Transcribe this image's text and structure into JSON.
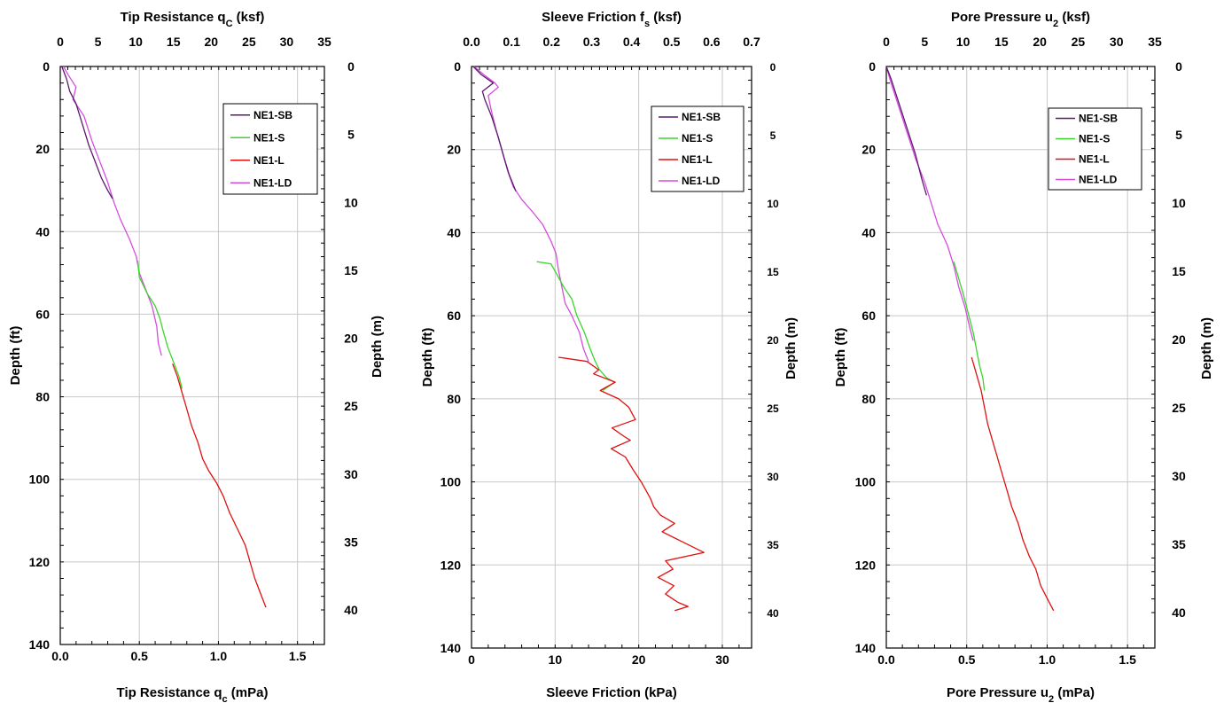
{
  "colors": {
    "NE1-SB": "#5b1a6e",
    "NE1-S": "#39d62b",
    "NE1-L": "#e01010",
    "NE1-LD": "#d54ce0",
    "grid": "#c8c8c8",
    "axis": "#000000"
  },
  "chart_data": [
    {
      "type": "line",
      "id": "tip",
      "title_top_pre": "Tip Resistance q",
      "title_top_sub": "C",
      "title_top_post": " (ksf)",
      "title_bottom_pre": "Tip Resistance q",
      "title_bottom_sub": "c",
      "title_bottom_post": " (mPa)",
      "ylabel_left": "Depth (ft)",
      "ylabel_right": "Depth (m)",
      "x_bottom": {
        "range": [
          0,
          1.67
        ],
        "ticks": [
          "0.0",
          "0.5",
          "1.0",
          "1.5"
        ],
        "tick_values": [
          0,
          0.5,
          1.0,
          1.5
        ]
      },
      "x_top": {
        "range": [
          0,
          35
        ],
        "ticks": [
          "0",
          "5",
          "10",
          "15",
          "20",
          "25",
          "30",
          "35"
        ],
        "tick_values": [
          0,
          5,
          10,
          15,
          20,
          25,
          30,
          35
        ]
      },
      "y_left": {
        "range": [
          0,
          140
        ],
        "ticks": [
          "0",
          "20",
          "40",
          "60",
          "80",
          "100",
          "120",
          "140"
        ],
        "tick_values": [
          0,
          20,
          40,
          60,
          80,
          100,
          120,
          140
        ]
      },
      "y_right": {
        "ticks": [
          "0",
          "5",
          "10",
          "15",
          "20",
          "25",
          "30",
          "35",
          "40"
        ],
        "tick_values": [
          0,
          5,
          10,
          15,
          20,
          25,
          30,
          35,
          40
        ]
      },
      "legend": {
        "position": "top-right",
        "entries": [
          "NE1-SB",
          "NE1-S",
          "NE1-L",
          "NE1-LD"
        ]
      },
      "series": [
        {
          "name": "NE1-LD",
          "points": [
            [
              0.02,
              0
            ],
            [
              0.05,
              2
            ],
            [
              0.1,
              5
            ],
            [
              0.08,
              8
            ],
            [
              0.15,
              12
            ],
            [
              0.2,
              18
            ],
            [
              0.26,
              24
            ],
            [
              0.3,
              28
            ],
            [
              0.34,
              33
            ],
            [
              0.38,
              37
            ],
            [
              0.44,
              42
            ],
            [
              0.48,
              46
            ],
            [
              0.5,
              50
            ],
            [
              0.54,
              54
            ],
            [
              0.58,
              58
            ],
            [
              0.61,
              63
            ],
            [
              0.62,
              67
            ],
            [
              0.64,
              70
            ]
          ]
        },
        {
          "name": "NE1-SB",
          "points": [
            [
              0.01,
              0
            ],
            [
              0.04,
              3
            ],
            [
              0.06,
              6
            ],
            [
              0.1,
              9
            ],
            [
              0.14,
              14
            ],
            [
              0.18,
              19
            ],
            [
              0.22,
              23
            ],
            [
              0.26,
              27
            ],
            [
              0.3,
              30
            ],
            [
              0.33,
              32
            ]
          ]
        },
        {
          "name": "NE1-S",
          "points": [
            [
              0.49,
              47
            ],
            [
              0.5,
              51
            ],
            [
              0.55,
              55
            ],
            [
              0.6,
              58
            ],
            [
              0.63,
              61
            ],
            [
              0.65,
              64
            ],
            [
              0.68,
              68
            ],
            [
              0.72,
              72
            ],
            [
              0.75,
              75
            ],
            [
              0.77,
              78
            ]
          ]
        },
        {
          "name": "NE1-L",
          "points": [
            [
              0.71,
              72
            ],
            [
              0.74,
              75
            ],
            [
              0.77,
              79
            ],
            [
              0.8,
              83
            ],
            [
              0.83,
              87
            ],
            [
              0.87,
              91
            ],
            [
              0.9,
              95
            ],
            [
              0.94,
              98
            ],
            [
              0.99,
              101
            ],
            [
              1.03,
              104
            ],
            [
              1.07,
              108
            ],
            [
              1.12,
              112
            ],
            [
              1.17,
              116
            ],
            [
              1.2,
              120
            ],
            [
              1.23,
              124
            ],
            [
              1.26,
              127
            ],
            [
              1.3,
              131
            ]
          ]
        }
      ]
    },
    {
      "type": "line",
      "id": "sleeve",
      "title_top_pre": "Sleeve Friction f",
      "title_top_sub": "s",
      "title_top_post": " (ksf)",
      "title_bottom_pre": "Sleeve Friction (kPa)",
      "title_bottom_sub": "",
      "title_bottom_post": "",
      "ylabel_left": "Depth (ft)",
      "ylabel_right": "Depth (m)",
      "x_bottom": {
        "range": [
          0,
          33.5
        ],
        "ticks": [
          "0",
          "10",
          "20",
          "30"
        ],
        "tick_values": [
          0,
          10,
          20,
          30
        ]
      },
      "x_top": {
        "range": [
          0,
          0.7
        ],
        "ticks": [
          "0.0",
          "0.1",
          "0.2",
          "0.3",
          "0.4",
          "0.5",
          "0.6",
          "0.7"
        ],
        "tick_values": [
          0,
          0.1,
          0.2,
          0.3,
          0.4,
          0.5,
          0.6,
          0.7
        ]
      },
      "y_left": {
        "range": [
          0,
          140
        ],
        "ticks": [
          "0",
          "20",
          "40",
          "60",
          "80",
          "100",
          "120",
          "140"
        ],
        "tick_values": [
          0,
          20,
          40,
          60,
          80,
          100,
          120,
          140
        ]
      },
      "y_right": {
        "ticks": [
          "0",
          "5",
          "10",
          "15",
          "20",
          "25",
          "30",
          "35",
          "40"
        ],
        "tick_values": [
          0,
          5,
          10,
          15,
          20,
          25,
          30,
          35,
          40
        ]
      },
      "legend": {
        "position": "top-right",
        "entries": [
          "NE1-SB",
          "NE1-S",
          "NE1-L",
          "NE1-LD"
        ]
      },
      "series": [
        {
          "name": "NE1-LD",
          "points": [
            [
              0.3,
              0
            ],
            [
              1.5,
              2
            ],
            [
              2.8,
              4
            ],
            [
              3.2,
              5
            ],
            [
              2,
              7
            ],
            [
              2.3,
              10
            ],
            [
              2.9,
              15
            ],
            [
              3.6,
              20
            ],
            [
              4.3,
              25
            ],
            [
              5,
              29
            ],
            [
              6,
              32
            ],
            [
              7.3,
              35
            ],
            [
              8.5,
              38
            ],
            [
              9.5,
              42
            ],
            [
              10.1,
              45
            ],
            [
              10.4,
              49
            ],
            [
              10.8,
              53
            ],
            [
              11.2,
              57
            ],
            [
              12,
              60
            ],
            [
              12.9,
              64
            ],
            [
              13.4,
              68
            ],
            [
              14,
              71
            ]
          ]
        },
        {
          "name": "NE1-SB",
          "points": [
            [
              0.2,
              0
            ],
            [
              1.2,
              2
            ],
            [
              2.6,
              4
            ],
            [
              1.3,
              6
            ],
            [
              1.6,
              8
            ],
            [
              2.4,
              12
            ],
            [
              3.2,
              17
            ],
            [
              3.9,
              22
            ],
            [
              4.5,
              26
            ],
            [
              5.3,
              30
            ]
          ]
        },
        {
          "name": "NE1-S",
          "points": [
            [
              7.8,
              47
            ],
            [
              9.5,
              47.5
            ],
            [
              10.2,
              50
            ],
            [
              11,
              53
            ],
            [
              12,
              56
            ],
            [
              12.6,
              60
            ],
            [
              13.5,
              64
            ],
            [
              14.2,
              68
            ],
            [
              14.8,
              71
            ],
            [
              15.3,
              73
            ],
            [
              16.2,
              75
            ],
            [
              17.1,
              76
            ],
            [
              15.7,
              78
            ]
          ]
        },
        {
          "name": "NE1-L",
          "points": [
            [
              10.4,
              70
            ],
            [
              13.8,
              71
            ],
            [
              15.2,
              73
            ],
            [
              14.6,
              74
            ],
            [
              17.2,
              76
            ],
            [
              15.4,
              78
            ],
            [
              17.6,
              80
            ],
            [
              18.8,
              82
            ],
            [
              19.6,
              85
            ],
            [
              16.8,
              87
            ],
            [
              18.2,
              89
            ],
            [
              19,
              90
            ],
            [
              16.7,
              92
            ],
            [
              18.4,
              94
            ],
            [
              19.3,
              97
            ],
            [
              20.3,
              100
            ],
            [
              21.4,
              104
            ],
            [
              21.8,
              106
            ],
            [
              22.6,
              108
            ],
            [
              24.3,
              110
            ],
            [
              22.8,
              112
            ],
            [
              24.8,
              114
            ],
            [
              27.8,
              117
            ],
            [
              23.2,
              119
            ],
            [
              24.1,
              121
            ],
            [
              22.3,
              123
            ],
            [
              24.2,
              125
            ],
            [
              23.2,
              127
            ],
            [
              24.7,
              129
            ],
            [
              25.9,
              130
            ],
            [
              24.3,
              131
            ]
          ]
        }
      ]
    },
    {
      "type": "line",
      "id": "pore",
      "title_top_pre": "Pore Pressure u",
      "title_top_sub": "2",
      "title_top_post": " (ksf)",
      "title_bottom_pre": "Pore Pressure u",
      "title_bottom_sub": "2",
      "title_bottom_post": " (mPa)",
      "ylabel_left": "Depth (ft)",
      "ylabel_right": "Depth (m)",
      "x_bottom": {
        "range": [
          0,
          1.67
        ],
        "ticks": [
          "0.0",
          "0.5",
          "1.0",
          "1.5"
        ],
        "tick_values": [
          0,
          0.5,
          1.0,
          1.5
        ]
      },
      "x_top": {
        "range": [
          0,
          35
        ],
        "ticks": [
          "0",
          "5",
          "10",
          "15",
          "20",
          "25",
          "30",
          "35"
        ],
        "tick_values": [
          0,
          5,
          10,
          15,
          20,
          25,
          30,
          35
        ]
      },
      "y_left": {
        "range": [
          0,
          140
        ],
        "ticks": [
          "0",
          "20",
          "40",
          "60",
          "80",
          "100",
          "120",
          "140"
        ],
        "tick_values": [
          0,
          20,
          40,
          60,
          80,
          100,
          120,
          140
        ]
      },
      "y_right": {
        "ticks": [
          "0",
          "5",
          "10",
          "15",
          "20",
          "25",
          "30",
          "35",
          "40"
        ],
        "tick_values": [
          0,
          5,
          10,
          15,
          20,
          25,
          30,
          35,
          40
        ]
      },
      "legend": {
        "position": "top-right",
        "entries": [
          "NE1-SB",
          "NE1-S",
          "NE1-L",
          "NE1-LD"
        ]
      },
      "series": [
        {
          "name": "NE1-LD",
          "points": [
            [
              0.0,
              0
            ],
            [
              0.03,
              4
            ],
            [
              0.08,
              10
            ],
            [
              0.13,
              16
            ],
            [
              0.18,
              22
            ],
            [
              0.24,
              28
            ],
            [
              0.28,
              33
            ],
            [
              0.32,
              38
            ],
            [
              0.38,
              43
            ],
            [
              0.42,
              48
            ],
            [
              0.45,
              53
            ],
            [
              0.49,
              58
            ],
            [
              0.52,
              63
            ],
            [
              0.54,
              66
            ]
          ]
        },
        {
          "name": "NE1-SB",
          "points": [
            [
              0.0,
              0
            ],
            [
              0.03,
              3
            ],
            [
              0.08,
              9
            ],
            [
              0.13,
              15
            ],
            [
              0.18,
              21
            ],
            [
              0.22,
              27
            ],
            [
              0.25,
              31
            ]
          ]
        },
        {
          "name": "NE1-S",
          "points": [
            [
              0.42,
              47
            ],
            [
              0.45,
              51
            ],
            [
              0.48,
              55
            ],
            [
              0.5,
              58
            ],
            [
              0.52,
              61
            ],
            [
              0.54,
              64
            ],
            [
              0.56,
              68
            ],
            [
              0.58,
              72
            ],
            [
              0.6,
              75
            ],
            [
              0.61,
              78
            ]
          ]
        },
        {
          "name": "NE1-L",
          "points": [
            [
              0.53,
              70
            ],
            [
              0.56,
              74
            ],
            [
              0.59,
              78
            ],
            [
              0.61,
              82
            ],
            [
              0.63,
              86
            ],
            [
              0.66,
              90
            ],
            [
              0.69,
              94
            ],
            [
              0.72,
              98
            ],
            [
              0.75,
              102
            ],
            [
              0.78,
              106
            ],
            [
              0.82,
              110
            ],
            [
              0.85,
              114
            ],
            [
              0.89,
              118
            ],
            [
              0.93,
              121
            ],
            [
              0.96,
              125
            ],
            [
              1.0,
              128
            ],
            [
              1.04,
              131
            ]
          ]
        }
      ]
    }
  ]
}
